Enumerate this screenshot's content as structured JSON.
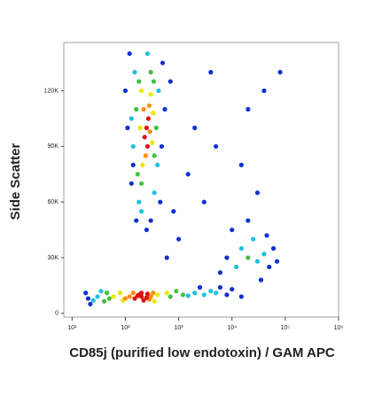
{
  "chart_data": {
    "type": "scatter",
    "xlabel": "CD85j (purified low endotoxin) / GAM APC",
    "ylabel": "Side Scatter",
    "xscale": "log",
    "xlim": [
      7,
      1000000
    ],
    "xticks": [
      {
        "value": 10,
        "label": "10¹"
      },
      {
        "value": 100,
        "label": "10²"
      },
      {
        "value": 1000,
        "label": "10³"
      },
      {
        "value": 10000,
        "label": "10⁴"
      },
      {
        "value": 100000,
        "label": "10⁵"
      },
      {
        "value": 1000000,
        "label": "10⁶"
      }
    ],
    "ylim": [
      -2000,
      146000
    ],
    "yticks": [
      0,
      {
        "value": 30000,
        "label": "30K"
      },
      {
        "value": 60000,
        "label": "60K"
      },
      {
        "value": 90000,
        "label": "90K"
      },
      {
        "value": 120000,
        "label": "120K"
      }
    ],
    "series": [
      {
        "color": "#1030d0",
        "x": [
          20,
          18,
          8000,
          10000,
          15000,
          6000,
          22,
          2500,
          120,
          500,
          110,
          480,
          130,
          160,
          250,
          450,
          100,
          550,
          300,
          140,
          8000,
          60000,
          50000,
          10000,
          20000,
          35000,
          70000,
          6000,
          45000,
          3000,
          5000,
          20000,
          1000,
          2000,
          40000,
          15000,
          600,
          80000,
          1500,
          30000,
          700,
          800,
          4000
        ],
        "values": [
          8000,
          11000,
          10000,
          13000,
          9000,
          14000,
          5000,
          14000,
          140000,
          135000,
          100000,
          90000,
          70000,
          50000,
          45000,
          60000,
          120000,
          110000,
          50000,
          80000,
          30000,
          35000,
          25000,
          45000,
          50000,
          18000,
          28000,
          22000,
          42000,
          60000,
          90000,
          110000,
          40000,
          100000,
          120000,
          80000,
          30000,
          130000,
          75000,
          65000,
          125000,
          55000,
          130000
        ]
      },
      {
        "color": "#20c0e0",
        "x": [
          30,
          1500,
          2000,
          3000,
          25,
          4000,
          5000,
          35,
          150,
          400,
          140,
          420,
          180,
          260,
          130,
          200,
          350,
          15000,
          30000,
          25000,
          12000,
          40000
        ],
        "values": [
          9000,
          9500,
          11000,
          10000,
          7000,
          12000,
          11000,
          12000,
          130000,
          80000,
          90000,
          120000,
          60000,
          140000,
          105000,
          55000,
          65000,
          35000,
          28000,
          40000,
          25000,
          32000
        ]
      },
      {
        "color": "#40c040",
        "x": [
          50,
          700,
          45,
          900,
          1200,
          40,
          180,
          350,
          170,
          340,
          160,
          380,
          200,
          300,
          20000
        ],
        "values": [
          8000,
          9000,
          11000,
          12000,
          10000,
          6500,
          125000,
          85000,
          75000,
          125000,
          110000,
          100000,
          70000,
          130000,
          30000
        ]
      },
      {
        "color": "#e8e800",
        "x": [
          90,
          400,
          80,
          350,
          60,
          600,
          200,
          320,
          210,
          300,
          190,
          330
        ],
        "values": [
          7000,
          10000,
          11000,
          6500,
          9000,
          11000,
          120000,
          92000,
          80000,
          118000,
          100000,
          108000
        ]
      },
      {
        "color": "#ff8c00",
        "x": [
          120,
          300,
          140,
          280,
          100,
          330,
          220,
          290,
          240,
          280
        ],
        "values": [
          9000,
          9000,
          11000,
          7500,
          8000,
          11000,
          110000,
          98000,
          85000,
          112000
        ]
      },
      {
        "color": "#e01010",
        "x": [
          150,
          200,
          250,
          180,
          220,
          170,
          260,
          200,
          250,
          230,
          270,
          260
        ],
        "values": [
          8000,
          9000,
          8500,
          10000,
          7000,
          9500,
          10500,
          11000,
          100000,
          95000,
          105000,
          90000
        ]
      }
    ]
  }
}
